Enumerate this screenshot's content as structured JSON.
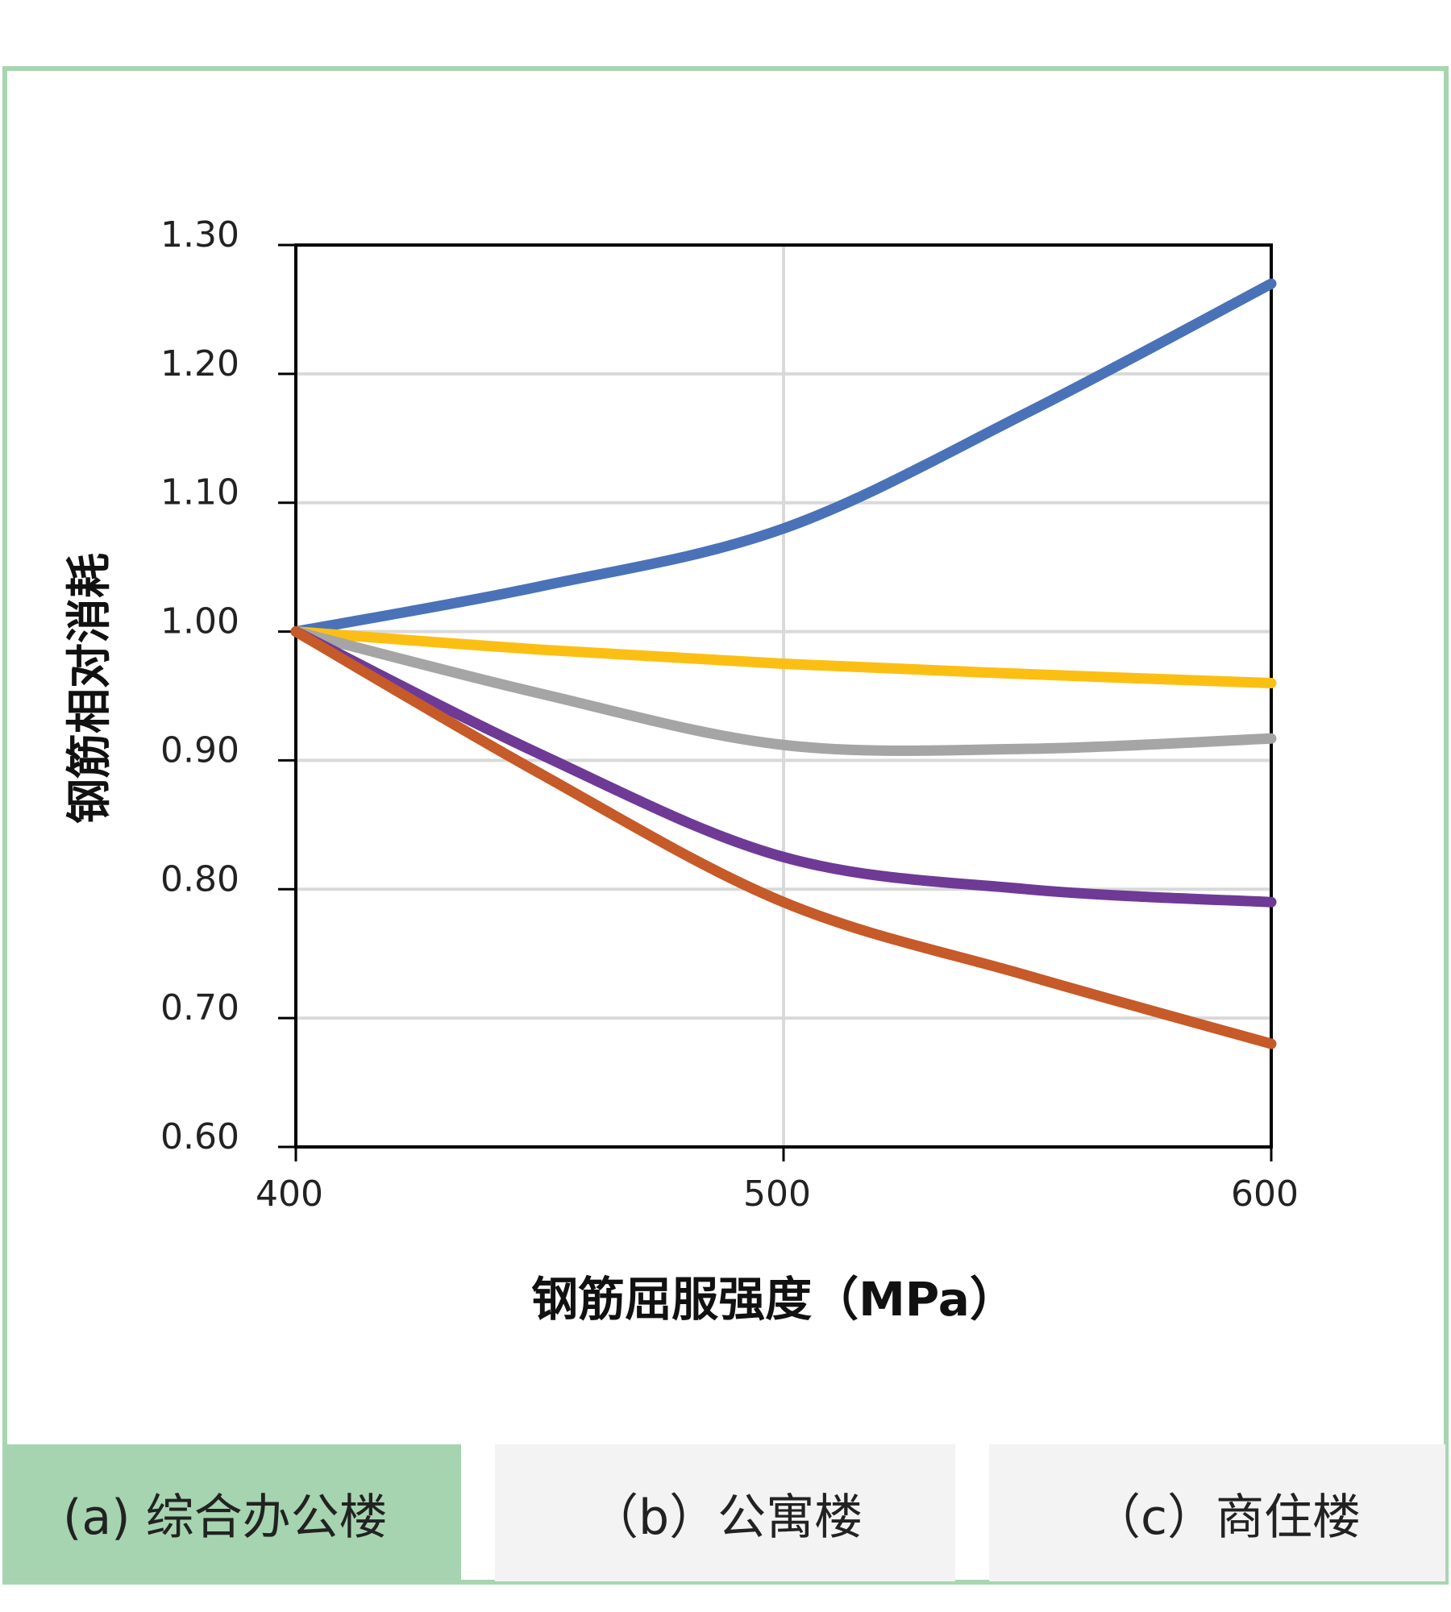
{
  "chart_data": {
    "type": "line",
    "title": "",
    "xlabel": "钢筋屈服强度（MPa）",
    "ylabel": "钢筋相对消耗",
    "xlim": [
      400,
      600
    ],
    "ylim": [
      0.6,
      1.3
    ],
    "xticks": [
      "400",
      "500",
      "600"
    ],
    "yticks": [
      "0.60",
      "0.70",
      "0.80",
      "0.90",
      "1.00",
      "1.10",
      "1.20",
      "1.30"
    ],
    "grid": true,
    "legend": "none",
    "x": [
      400,
      450,
      500,
      550,
      600
    ],
    "series": [
      {
        "name": "series-blue",
        "color": "#4a72b8",
        "values": [
          1.0,
          1.035,
          1.08,
          1.17,
          1.27
        ]
      },
      {
        "name": "series-yellow",
        "color": "#fbbf14",
        "values": [
          1.0,
          0.986,
          0.975,
          0.967,
          0.96
        ]
      },
      {
        "name": "series-gray",
        "color": "#a5a5a5",
        "values": [
          1.0,
          0.952,
          0.912,
          0.909,
          0.917
        ]
      },
      {
        "name": "series-purple",
        "color": "#6e3a96",
        "values": [
          1.0,
          0.905,
          0.825,
          0.8,
          0.79
        ]
      },
      {
        "name": "series-orange",
        "color": "#c65a28",
        "values": [
          1.0,
          0.89,
          0.79,
          0.733,
          0.68
        ]
      }
    ]
  },
  "tabs": [
    {
      "label": "(a) 综合办公楼",
      "active": true
    },
    {
      "label": "（b）公寓楼",
      "active": false
    },
    {
      "label": "（c）商住楼",
      "active": false
    }
  ],
  "colors": {
    "frame": "#a8d5b0",
    "active_tab": "#a6d4b0",
    "inactive_tab": "#f3f3f3"
  }
}
